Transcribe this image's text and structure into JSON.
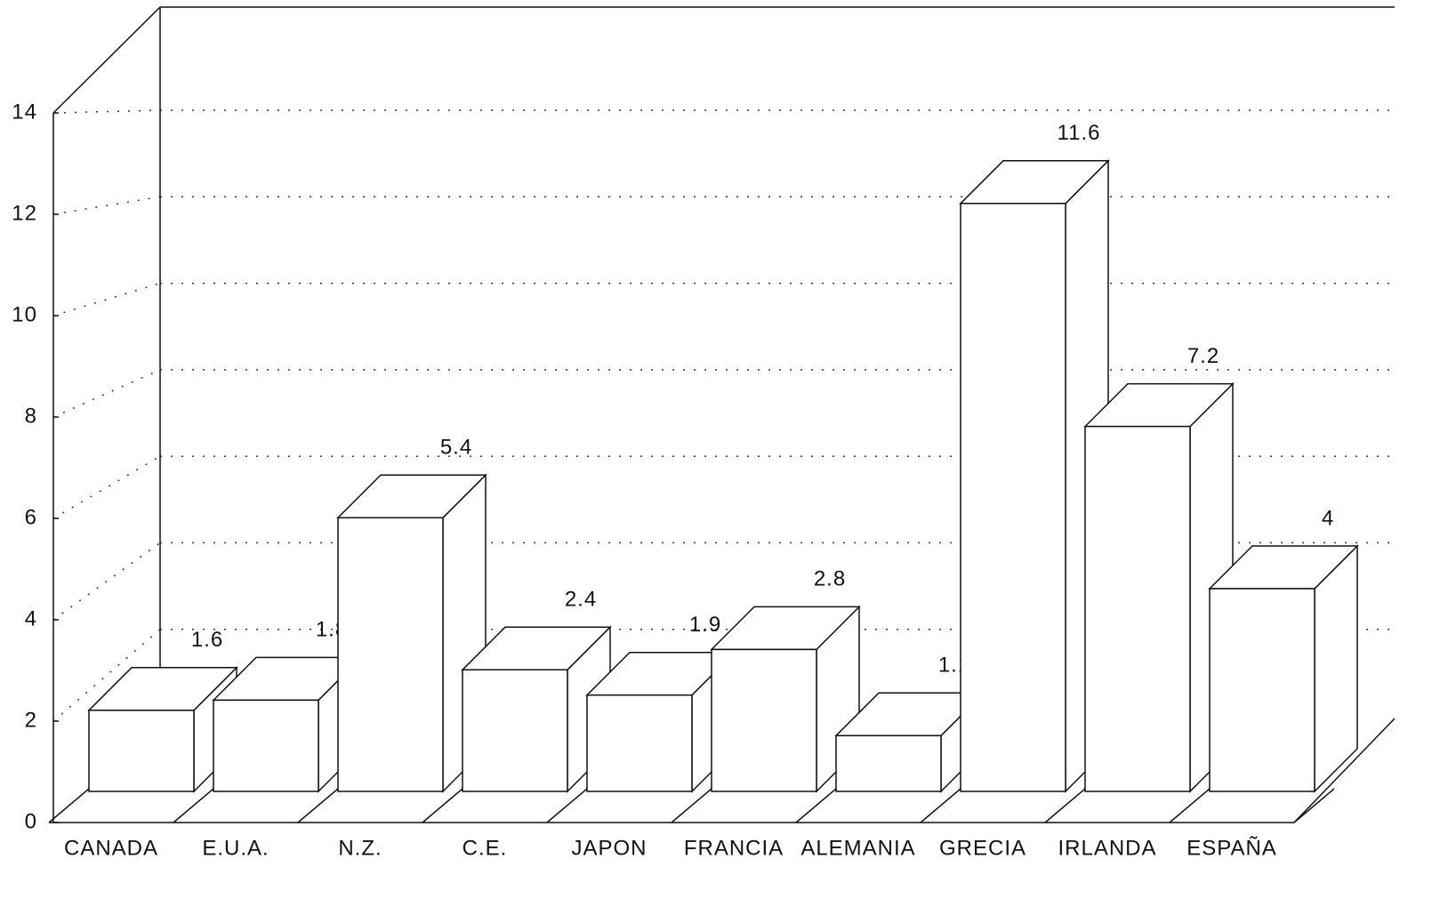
{
  "chart_data": {
    "type": "bar3d",
    "categories": [
      "CANADA",
      "E.U.A.",
      "N.Z.",
      "C.E.",
      "JAPON",
      "FRANCIA",
      "ALEMANIA",
      "GRECIA",
      "IRLANDA",
      "ESPAÑA"
    ],
    "values": [
      1.6,
      1.8,
      5.4,
      2.4,
      1.9,
      2.8,
      1.1,
      11.6,
      7.2,
      4
    ],
    "color": "#ffffff",
    "ylim": [
      0,
      14
    ],
    "yticks": [
      0,
      2,
      4,
      6,
      8,
      10,
      12,
      14
    ],
    "grid": true
  }
}
